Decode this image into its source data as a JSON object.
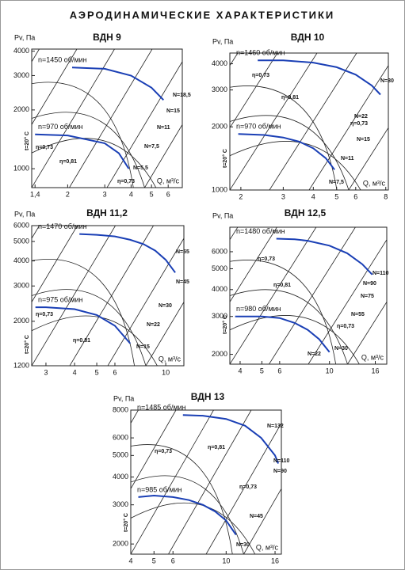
{
  "title": "АЭРОДИНАМИЧЕСКИЕ ХАРАКТЕРИСТИКИ",
  "chart_data": [
    {
      "type": "line",
      "title": "ВДН 9",
      "y_label": "Pv, Па",
      "x_label": "Q, м³/с",
      "log_x": true,
      "log_y": true,
      "xlim": [
        1.35,
        7
      ],
      "ylim": [
        800,
        4100
      ],
      "xticks": [
        {
          "value": 1.4,
          "label": "1,4"
        },
        2,
        3,
        4,
        5,
        6
      ],
      "yticks": [
        1000,
        2000,
        3000,
        4000
      ],
      "series": [
        {
          "name": "n=1450 об/мин",
          "color": "#1a3fb5",
          "x": [
            2.1,
            3,
            4,
            5,
            5.7
          ],
          "values": [
            3300,
            3250,
            3000,
            2600,
            2250
          ]
        },
        {
          "name": "n=970 об/мин",
          "color": "#1a3fb5",
          "x": [
            1.4,
            2,
            3,
            3.5,
            3.9
          ],
          "values": [
            1500,
            1480,
            1350,
            1200,
            1000
          ]
        }
      ],
      "annotations": [
        "η=0,73",
        "η=0,81",
        "η=0,73",
        "N=18,5",
        "N=15",
        "N=11",
        "N=7,5",
        "N=5,5",
        "t=20° C"
      ]
    },
    {
      "type": "line",
      "title": "ВДН 10",
      "y_label": "Pv, Па",
      "x_label": "Q, м³/с",
      "log_x": true,
      "log_y": true,
      "xlim": [
        1.8,
        8.2
      ],
      "ylim": [
        1000,
        4500
      ],
      "xticks": [
        2,
        3,
        4,
        5,
        6,
        8
      ],
      "yticks": [
        1000,
        2000,
        3000,
        4000
      ],
      "series": [
        {
          "name": "n=1460 об/мин",
          "color": "#1a3fb5",
          "x": [
            2.35,
            3,
            4,
            5,
            6,
            7,
            7.6
          ],
          "values": [
            4150,
            4150,
            4050,
            3850,
            3550,
            3150,
            2850
          ]
        },
        {
          "name": "n=970 об/мин",
          "color": "#1a3fb5",
          "x": [
            1.95,
            2.5,
            3,
            3.5,
            4,
            4.5,
            4.9
          ],
          "values": [
            1850,
            1830,
            1780,
            1700,
            1580,
            1420,
            1250
          ]
        }
      ],
      "annotations": [
        "η=0,73",
        "η=0,81",
        "η=0,73",
        "N=30",
        "N=22",
        "N=15",
        "N=11",
        "N=7,5",
        "t=20° C"
      ]
    },
    {
      "type": "line",
      "title": "ВДН 11,2",
      "y_label": "Pv, Па",
      "x_label": "Q, м³/с",
      "log_x": true,
      "log_y": true,
      "xlim": [
        2.6,
        12
      ],
      "ylim": [
        1200,
        6000
      ],
      "xticks": [
        3,
        4,
        5,
        6,
        10
      ],
      "yticks": [
        1200,
        2000,
        3000,
        4000,
        5000,
        6000
      ],
      "series": [
        {
          "name": "n=1470 об/мин",
          "color": "#1a3fb5",
          "x": [
            4.2,
            5,
            6,
            7,
            8,
            9,
            10,
            11
          ],
          "values": [
            5450,
            5400,
            5300,
            5100,
            4850,
            4500,
            4050,
            3500
          ]
        },
        {
          "name": "n=975 об/мин",
          "color": "#1a3fb5",
          "x": [
            2.7,
            3,
            4,
            5,
            6,
            7
          ],
          "values": [
            2350,
            2350,
            2300,
            2150,
            1900,
            1550
          ]
        }
      ],
      "annotations": [
        "η=0,73",
        "η=0,81",
        "N=55",
        "N=45",
        "N=30",
        "N=22",
        "N=15",
        "t=20° C"
      ]
    },
    {
      "type": "line",
      "title": "ВДН 12,5",
      "y_label": "Pv, Па",
      "x_label": "Q, м³/с",
      "log_x": true,
      "log_y": true,
      "xlim": [
        3.6,
        18
      ],
      "ylim": [
        1800,
        7800
      ],
      "xticks": [
        4,
        5,
        6,
        10,
        16
      ],
      "yticks": [
        2000,
        3000,
        4000,
        5000,
        6000
      ],
      "series": [
        {
          "name": "n=1480 об/мин",
          "color": "#1a3fb5",
          "x": [
            5.8,
            7,
            8,
            10,
            12,
            14,
            15.5
          ],
          "values": [
            6900,
            6850,
            6750,
            6400,
            5900,
            5250,
            4700
          ]
        },
        {
          "name": "n=980 об/мин",
          "color": "#1a3fb5",
          "x": [
            3.8,
            5,
            6,
            7,
            8,
            9,
            10
          ],
          "values": [
            3000,
            3000,
            2950,
            2800,
            2600,
            2350,
            2050
          ]
        }
      ],
      "annotations": [
        "η=0,73",
        "η=0,81",
        "η=0,73",
        "N=110",
        "N=90",
        "N=75",
        "N=55",
        "N=30",
        "N=22",
        "t=20° C"
      ]
    },
    {
      "type": "line",
      "title": "ВДН 13",
      "y_label": "Pv, Па",
      "x_label": "Q, м³/с",
      "log_x": true,
      "log_y": true,
      "xlim": [
        4,
        17
      ],
      "ylim": [
        1800,
        8000
      ],
      "xticks": [
        4,
        5,
        6,
        10,
        16
      ],
      "yticks": [
        2000,
        3000,
        4000,
        5000,
        6000,
        8000
      ],
      "series": [
        {
          "name": "n=1485 об/мин",
          "color": "#1a3fb5",
          "x": [
            6.6,
            8,
            10,
            12,
            14,
            16,
            16.5
          ],
          "values": [
            7600,
            7550,
            7300,
            6800,
            6000,
            5000,
            4600
          ]
        },
        {
          "name": "n=985 об/мин",
          "color": "#1a3fb5",
          "x": [
            4.3,
            5,
            6,
            7,
            8,
            9,
            10,
            11
          ],
          "values": [
            3250,
            3300,
            3250,
            3150,
            3000,
            2800,
            2550,
            2200
          ]
        }
      ],
      "annotations": [
        "η=0,73",
        "η=0,81",
        "η=0,73",
        "N=132",
        "N=110",
        "N=90",
        "N=45",
        "N=30",
        "t=20° C"
      ]
    }
  ]
}
